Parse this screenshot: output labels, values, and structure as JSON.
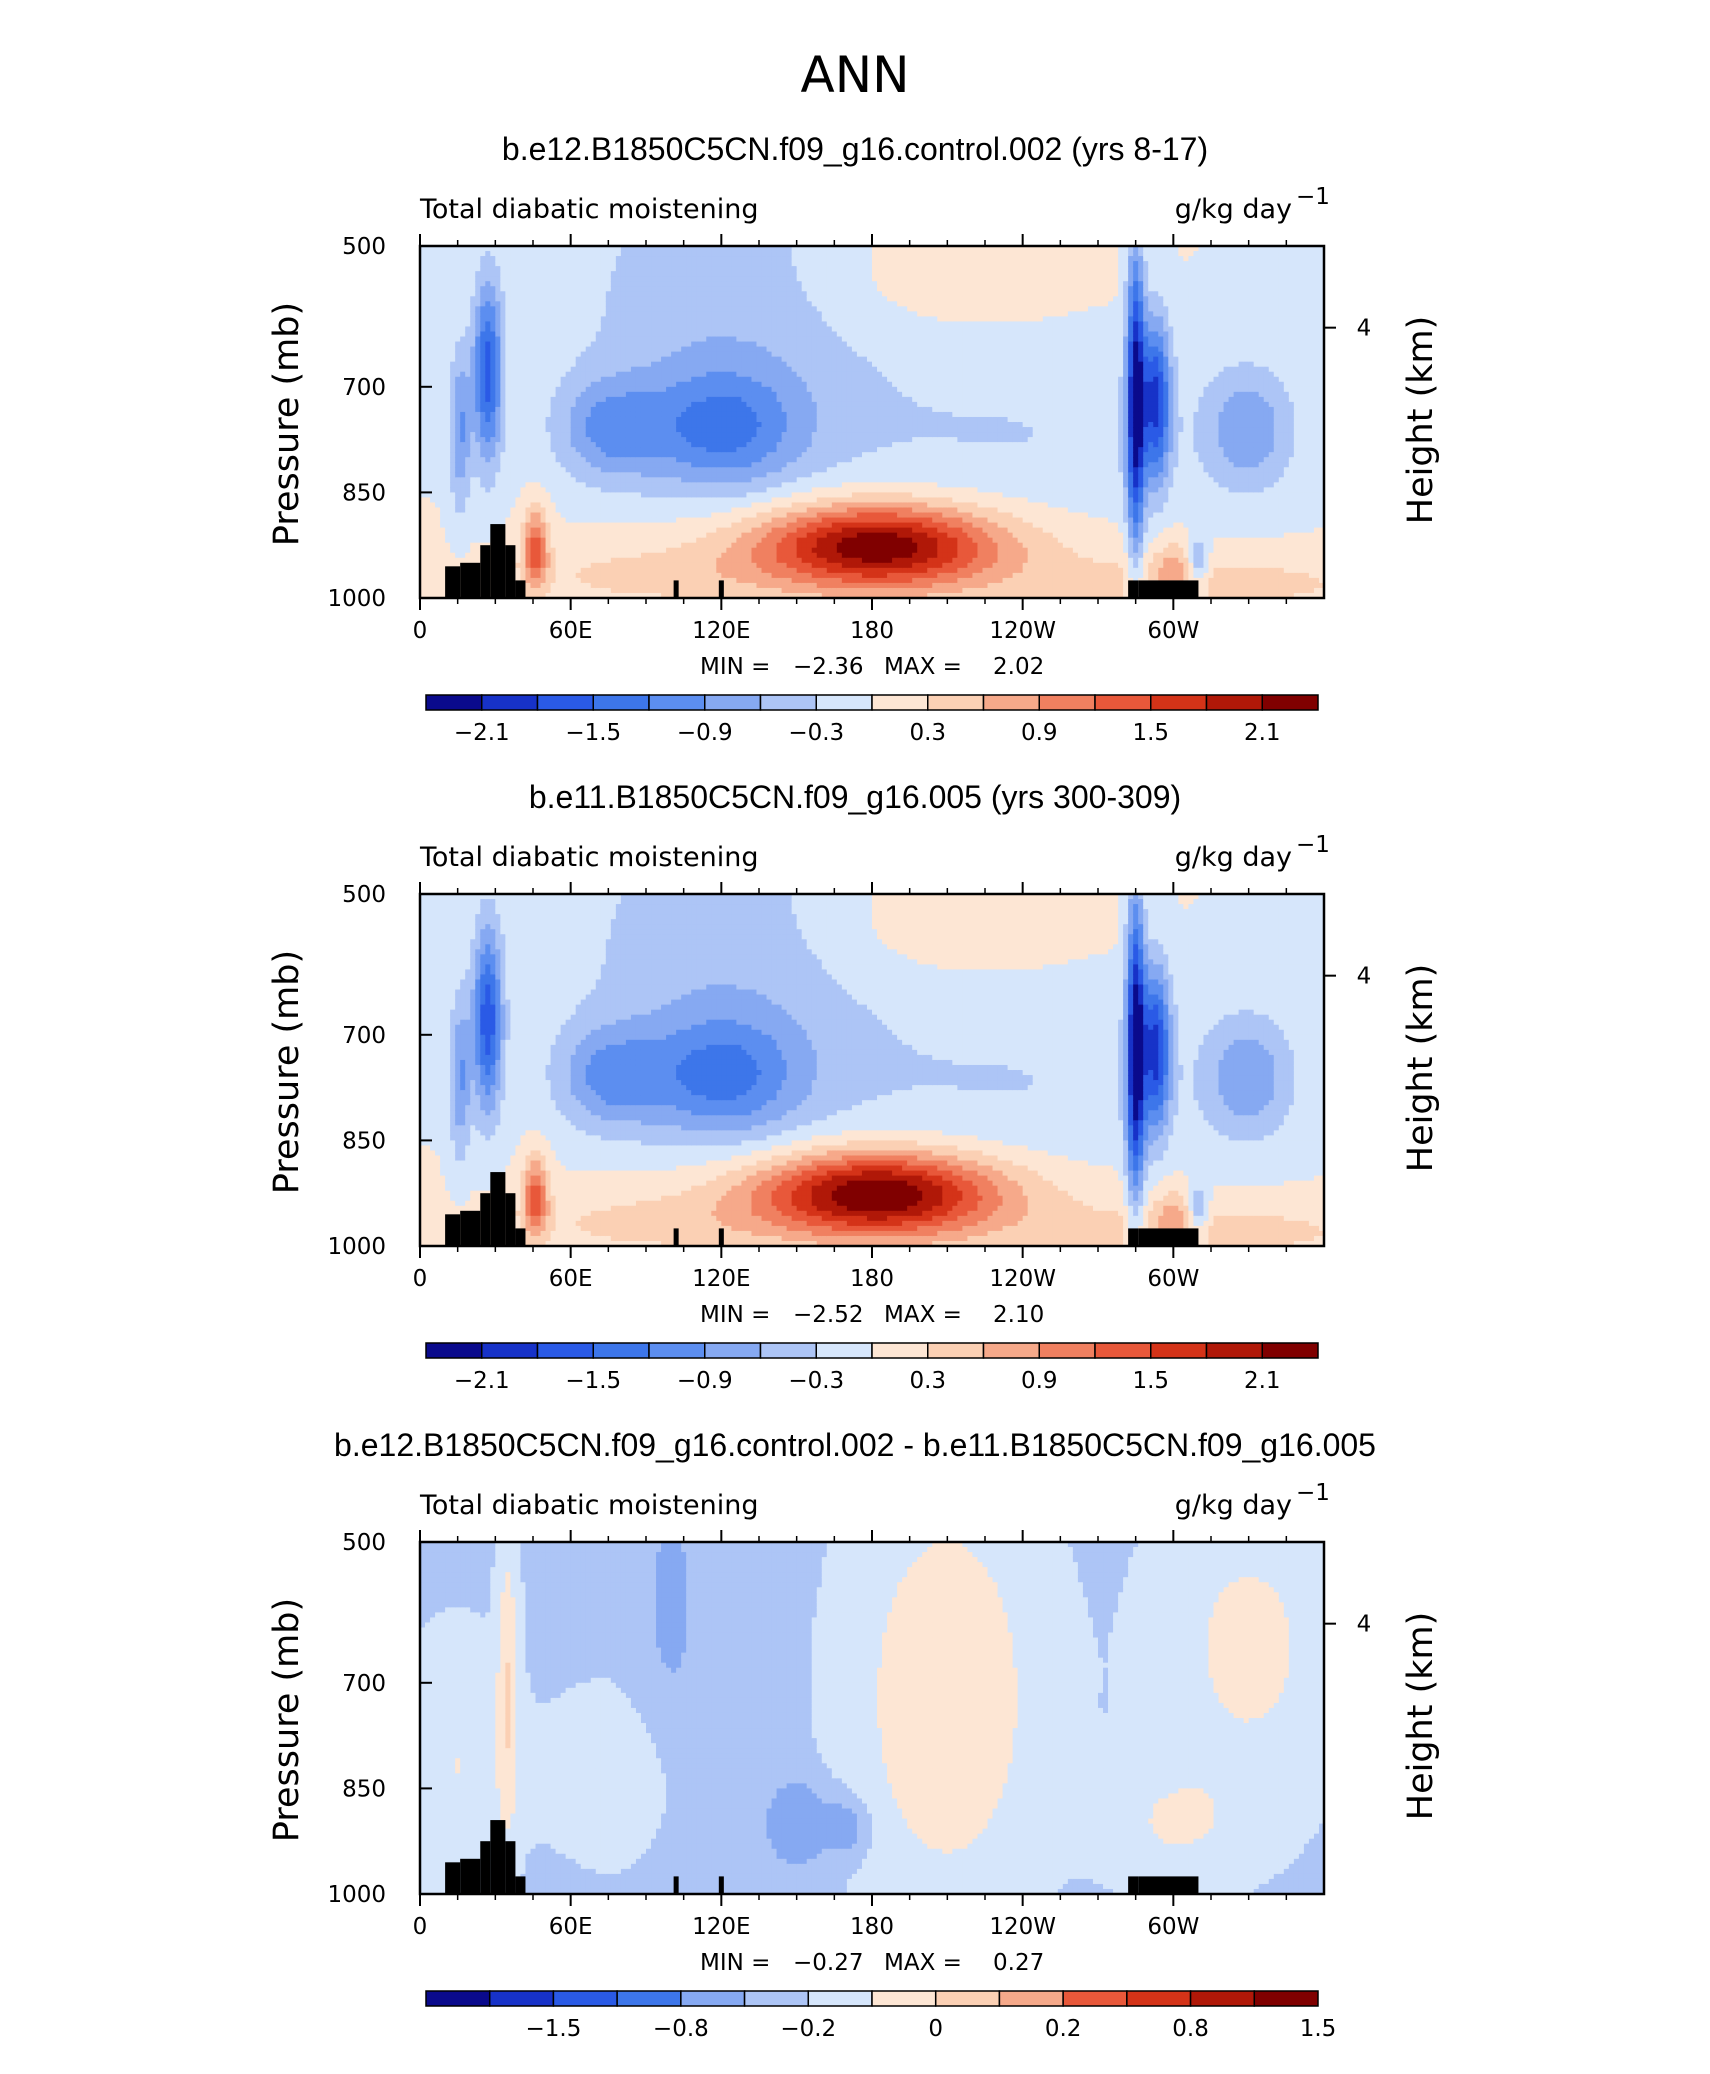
{
  "figure_title": "ANN",
  "chart_data": [
    {
      "type": "heatmap",
      "title": "b.e12.B1850C5CN.f09_g16.control.002 (yrs 8-17)",
      "variable": "Total diabatic moistening",
      "units": "g/kg day",
      "units_exp": "−1",
      "ylabel": "Pressure (mb)",
      "ylabel2": "Height (km)",
      "y_ticks": [
        "500",
        "700",
        "850",
        "1000"
      ],
      "y2_ticks": [
        "4"
      ],
      "x_ticks": [
        "0",
        "60E",
        "120E",
        "180",
        "120W",
        "60W"
      ],
      "min_label": "MIN =",
      "min_value": "−2.36",
      "max_label": "MAX =",
      "max_value": "2.02",
      "min": -2.36,
      "max": 2.02,
      "colorbar_ticks": [
        "−2.1",
        "−1.5",
        "−0.9",
        "−0.3",
        "0.3",
        "0.9",
        "1.5",
        "2.1"
      ],
      "colorbar_levels": [
        -2.4,
        -2.1,
        -1.8,
        -1.5,
        -1.2,
        -0.9,
        -0.6,
        -0.3,
        0,
        0.3,
        0.6,
        0.9,
        1.2,
        1.5,
        1.8,
        2.1,
        2.4
      ],
      "features": [
        {
          "lon": 182,
          "p": 920,
          "value": 2.0
        },
        {
          "lon": 28,
          "p": 680,
          "value": -1.6
        },
        {
          "lon": 295,
          "p": 700,
          "value": -2.2
        },
        {
          "lon": 120,
          "p": 760,
          "value": -1.0
        },
        {
          "lon": 70,
          "p": 760,
          "value": -0.8
        },
        {
          "lon": 330,
          "p": 760,
          "value": -0.7
        },
        {
          "lon": 47,
          "p": 930,
          "value": 1.3
        }
      ]
    },
    {
      "type": "heatmap",
      "title": "b.e11.B1850C5CN.f09_g16.005 (yrs 300-309)",
      "variable": "Total diabatic moistening",
      "units": "g/kg day",
      "units_exp": "−1",
      "ylabel": "Pressure (mb)",
      "ylabel2": "Height (km)",
      "y_ticks": [
        "500",
        "700",
        "850",
        "1000"
      ],
      "y2_ticks": [
        "4"
      ],
      "x_ticks": [
        "0",
        "60E",
        "120E",
        "180",
        "120W",
        "60W"
      ],
      "min_label": "MIN =",
      "min_value": "−2.52",
      "max_label": "MAX =",
      "max_value": "2.10",
      "min": -2.52,
      "max": 2.1,
      "colorbar_ticks": [
        "−2.1",
        "−1.5",
        "−0.9",
        "−0.3",
        "0.3",
        "0.9",
        "1.5",
        "2.1"
      ],
      "colorbar_levels": [
        -2.4,
        -2.1,
        -1.8,
        -1.5,
        -1.2,
        -0.9,
        -0.6,
        -0.3,
        0,
        0.3,
        0.6,
        0.9,
        1.2,
        1.5,
        1.8,
        2.1,
        2.4
      ],
      "features": [
        {
          "lon": 182,
          "p": 920,
          "value": 2.1
        },
        {
          "lon": 28,
          "p": 680,
          "value": -1.7
        },
        {
          "lon": 295,
          "p": 700,
          "value": -2.3
        },
        {
          "lon": 120,
          "p": 760,
          "value": -1.1
        },
        {
          "lon": 70,
          "p": 760,
          "value": -0.8
        },
        {
          "lon": 330,
          "p": 760,
          "value": -0.7
        },
        {
          "lon": 47,
          "p": 930,
          "value": 1.4
        }
      ]
    },
    {
      "type": "heatmap",
      "title": "b.e12.B1850C5CN.f09_g16.control.002 - b.e11.B1850C5CN.f09_g16.005",
      "variable": "Total diabatic moistening",
      "units": "g/kg day",
      "units_exp": "−1",
      "ylabel": "Pressure (mb)",
      "ylabel2": "Height (km)",
      "y_ticks": [
        "500",
        "700",
        "850",
        "1000"
      ],
      "y2_ticks": [
        "4"
      ],
      "x_ticks": [
        "0",
        "60E",
        "120E",
        "180",
        "120W",
        "60W"
      ],
      "min_label": "MIN =",
      "min_value": "−0.27",
      "max_label": "MAX =",
      "max_value": "0.27",
      "min": -0.27,
      "max": 0.27,
      "colorbar_ticks": [
        "−1.5",
        "−0.8",
        "−0.2",
        "0",
        "0.2",
        "0.8",
        "1.5"
      ],
      "colorbar_levels": [
        -2.0,
        -1.5,
        -1.0,
        -0.8,
        -0.5,
        -0.2,
        -0.1,
        0,
        0.1,
        0.2,
        0.5,
        0.8,
        1.0,
        1.5,
        2.0
      ],
      "features": [
        {
          "lon": 150,
          "p": 900,
          "value": -0.25
        },
        {
          "lon": 40,
          "p": 720,
          "value": 0.2
        },
        {
          "lon": 210,
          "p": 700,
          "value": 0.08
        }
      ]
    }
  ],
  "colors": {
    "palette": [
      "#0a0a8c",
      "#1732c8",
      "#2a5ae6",
      "#3d76ea",
      "#5c8ef0",
      "#86a9f2",
      "#adc5f6",
      "#d6e6fb",
      "#fde6d4",
      "#fbd0b4",
      "#f6a98a",
      "#f08060",
      "#e8583a",
      "#d43318",
      "#b01808",
      "#800000"
    ]
  }
}
